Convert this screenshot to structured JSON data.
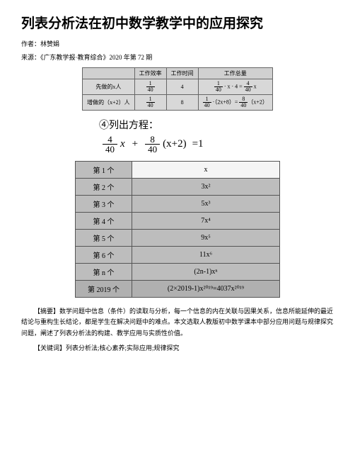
{
  "title": "列表分析法在初中数学教学中的应用探究",
  "author_line": "作者：林赞娟",
  "source_line": "来源：《广东教学报·教育综合》2020 年第 72 期",
  "table1": {
    "headers": [
      "",
      "工作效率",
      "工作时间",
      "工作总量"
    ],
    "rows": [
      {
        "label": "先做的x人",
        "rate_num": "1",
        "rate_den": "40",
        "time": "4",
        "total_html": "frac1_40_times_4_eq_4_40_x"
      },
      {
        "label": "增做的（x+2）人",
        "rate_num": "1",
        "rate_den": "40",
        "time": "8",
        "total_html": "frac1_40_times_2x8_eq_8_40_xp2"
      }
    ]
  },
  "eq_title": "④列出方程：",
  "equation": {
    "term1_num": "4",
    "term1_den": "40",
    "var1": "x",
    "plus": "+",
    "term2_num": "8",
    "term2_den": "40",
    "var2": "(x+2)",
    "eq": "=1"
  },
  "table2": {
    "rows": [
      {
        "label": "第 1 个",
        "val": "x",
        "white": true
      },
      {
        "label": "第 2 个",
        "val": "3x²"
      },
      {
        "label": "第 3 个",
        "val": "5x³"
      },
      {
        "label": "第 4 个",
        "val": "7x⁴"
      },
      {
        "label": "第 5 个",
        "val": "9x⁵"
      },
      {
        "label": "第 6 个",
        "val": "11x⁶"
      },
      {
        "label": "第 n 个",
        "val": "(2n-1)xⁿ"
      },
      {
        "label": "第 2019 个",
        "val": "(2×2019-1)x²⁰¹⁹=4037x²⁰¹⁹",
        "grey2": true
      }
    ]
  },
  "abstract": "【摘要】数学问题中信息（条件）的读取与分析，每一个信息的内在关联与因果关系，信息所能延伸的最近结论与重构生长结论，都是学生在解决问题中的难点。本文选取人教版初中数学课本中部分应用问题与规律探究问题，阐述了列表分析法的构建、教学应用与实质性价值。",
  "keywords": "【关键词】列表分析法;核心素养;实际应用;规律探究"
}
